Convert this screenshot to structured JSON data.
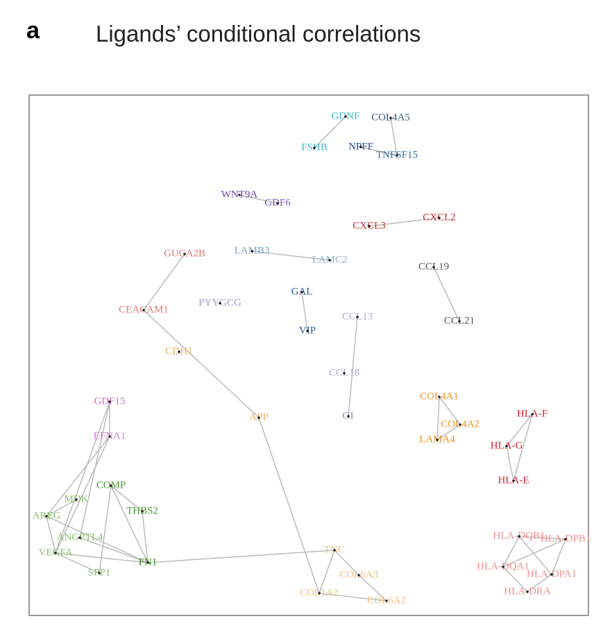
{
  "panel_label": "a",
  "title": "Ligands’ conditional correlations",
  "nodes": [
    {
      "label": "GDNF"
    },
    {
      "label": "COL4A5"
    },
    {
      "label": "FSHB"
    },
    {
      "label": "NPFF"
    },
    {
      "label": "TNFSF15"
    },
    {
      "label": "WNT9A"
    },
    {
      "label": "GDF6"
    },
    {
      "label": "CXCL3"
    },
    {
      "label": "CXCL2"
    },
    {
      "label": "GUCA2B"
    },
    {
      "label": "LAMB3"
    },
    {
      "label": "LAMC2"
    },
    {
      "label": "CCL19"
    },
    {
      "label": "CEACAM1"
    },
    {
      "label": "PYYGCG"
    },
    {
      "label": "GAL"
    },
    {
      "label": "VIP"
    },
    {
      "label": "CCL13"
    },
    {
      "label": "CCL21"
    },
    {
      "label": "CDH1"
    },
    {
      "label": "CCL18"
    },
    {
      "label": "GDF15"
    },
    {
      "label": "COL4A1"
    },
    {
      "label": "HLA-F"
    },
    {
      "label": "APP"
    },
    {
      "label": "C1"
    },
    {
      "label": "COL4A2"
    },
    {
      "label": "EFNA1"
    },
    {
      "label": "LAMA4"
    },
    {
      "label": "HLA-G"
    },
    {
      "label": "HLA-E"
    },
    {
      "label": "COMP"
    },
    {
      "label": "MDK"
    },
    {
      "label": "THBS2"
    },
    {
      "label": "AREG"
    },
    {
      "label": "ANGPTL4"
    },
    {
      "label": "VEGFA"
    },
    {
      "label": "TNC"
    },
    {
      "label": "HLA-DQB1"
    },
    {
      "label": "HLA-DPB1"
    },
    {
      "label": "FN1"
    },
    {
      "label": "SPP1"
    },
    {
      "label": "COL6A3"
    },
    {
      "label": "HLA-DQA1"
    },
    {
      "label": "HLA-DPA1"
    },
    {
      "label": "COL1A2"
    },
    {
      "label": "COL6A2"
    },
    {
      "label": "HLA-DRA"
    }
  ]
}
